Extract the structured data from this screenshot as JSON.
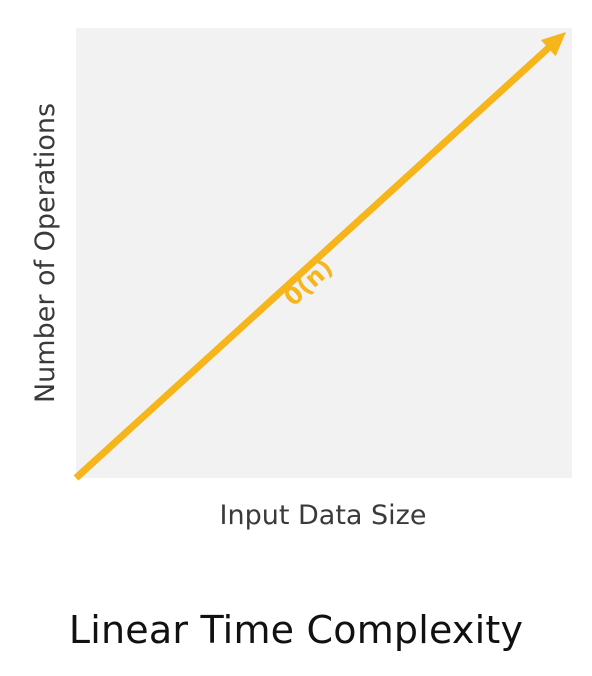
{
  "figure_caption": "Linear Time Complexity",
  "chart_data": {
    "type": "line",
    "title": "",
    "xlabel": "Input Data Size",
    "ylabel": "Number of Operations",
    "x": [
      0,
      1
    ],
    "xlim": [
      0,
      1
    ],
    "ylim": [
      0,
      1
    ],
    "show_ticks": false,
    "grid": false,
    "plot_background": "#f2f2f2",
    "series": [
      {
        "name": "0(n)",
        "color": "#f5b51b",
        "values": [
          0,
          1
        ],
        "arrowhead": true
      }
    ]
  }
}
